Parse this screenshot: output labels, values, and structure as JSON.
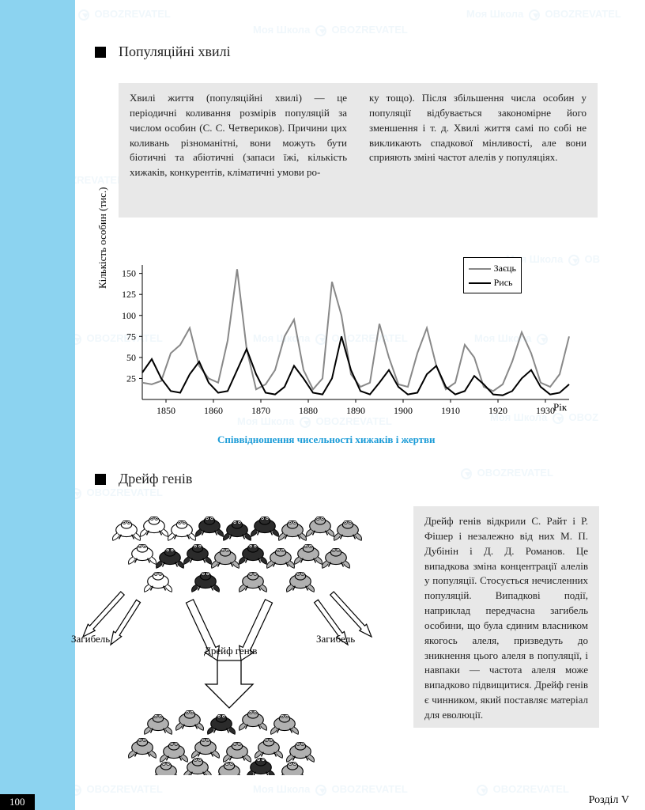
{
  "page": {
    "number": "100",
    "section_label": "Розділ V"
  },
  "watermark": {
    "text1": "Моя Школа",
    "text2": "OBOZREVATEL"
  },
  "heading1": "Популяційні хвилі",
  "heading2": "Дрейф генів",
  "textbox1_left": "Хвилі життя (популяційні хвилі) — це періодичні коливання розмірів популяцій за числом особин (С. С. Четвериков). Причини цих коливань різноманітні, вони можуть бути біотичні та абіотичні (запаси їжі, кількість хижаків, конкурентів, кліматичні умови ро-",
  "textbox1_right": "ку тощо). Після збільшення числа особин у популяції відбувається закономірне його зменшення і т. д. Хвилі життя самі по собі не викликають спадкової мінливості, але вони сприяють зміні частот алелів у популяціях.",
  "textbox2": "Дрейф генів відкрили С. Райт і Р. Фішер і незалежно від них М. П. Дубінін і Д. Д. Романов. Це випадкова зміна концентрації алелів у популяції. Стосується нечисленних популяцій. Випадкові події, наприклад передчасна загибель особини, що була єдиним власником якогось алеля, призведуть до зникнення цього алеля в популяції, і навпаки — частота алеля може випадково підвищитися. Дрейф генів є чинником, який поставляє матеріал для еволюції.",
  "chart": {
    "type": "line",
    "y_label": "Кількість особин (тис.)",
    "x_label": "Рік",
    "caption": "Співвідношення чисельності хижаків і жертви",
    "xlim": [
      1845,
      1935
    ],
    "ylim": [
      0,
      160
    ],
    "xticks": [
      1850,
      1860,
      1870,
      1880,
      1890,
      1900,
      1910,
      1920,
      1930
    ],
    "yticks": [
      25,
      50,
      75,
      100,
      125,
      150
    ],
    "legend": [
      {
        "label": "Заєць",
        "color": "#888888",
        "width": 2
      },
      {
        "label": "Рись",
        "color": "#000000",
        "width": 2
      }
    ],
    "series": {
      "hare": {
        "color": "#888888",
        "points": [
          [
            1845,
            20
          ],
          [
            1847,
            18
          ],
          [
            1849,
            22
          ],
          [
            1851,
            55
          ],
          [
            1853,
            65
          ],
          [
            1855,
            85
          ],
          [
            1857,
            40
          ],
          [
            1859,
            25
          ],
          [
            1861,
            20
          ],
          [
            1863,
            70
          ],
          [
            1865,
            155
          ],
          [
            1867,
            60
          ],
          [
            1869,
            12
          ],
          [
            1871,
            18
          ],
          [
            1873,
            35
          ],
          [
            1875,
            75
          ],
          [
            1877,
            95
          ],
          [
            1879,
            35
          ],
          [
            1881,
            12
          ],
          [
            1883,
            25
          ],
          [
            1885,
            140
          ],
          [
            1887,
            100
          ],
          [
            1889,
            30
          ],
          [
            1891,
            15
          ],
          [
            1893,
            20
          ],
          [
            1895,
            90
          ],
          [
            1897,
            50
          ],
          [
            1899,
            18
          ],
          [
            1901,
            15
          ],
          [
            1903,
            55
          ],
          [
            1905,
            85
          ],
          [
            1907,
            40
          ],
          [
            1909,
            12
          ],
          [
            1911,
            20
          ],
          [
            1913,
            65
          ],
          [
            1915,
            50
          ],
          [
            1917,
            15
          ],
          [
            1919,
            10
          ],
          [
            1921,
            18
          ],
          [
            1923,
            45
          ],
          [
            1925,
            80
          ],
          [
            1927,
            55
          ],
          [
            1929,
            20
          ],
          [
            1931,
            15
          ],
          [
            1933,
            30
          ],
          [
            1935,
            75
          ]
        ]
      },
      "lynx": {
        "color": "#000000",
        "points": [
          [
            1845,
            32
          ],
          [
            1847,
            48
          ],
          [
            1849,
            25
          ],
          [
            1851,
            10
          ],
          [
            1853,
            8
          ],
          [
            1855,
            30
          ],
          [
            1857,
            45
          ],
          [
            1859,
            20
          ],
          [
            1861,
            8
          ],
          [
            1863,
            10
          ],
          [
            1865,
            35
          ],
          [
            1867,
            60
          ],
          [
            1869,
            30
          ],
          [
            1871,
            8
          ],
          [
            1873,
            6
          ],
          [
            1875,
            15
          ],
          [
            1877,
            40
          ],
          [
            1879,
            25
          ],
          [
            1881,
            8
          ],
          [
            1883,
            6
          ],
          [
            1885,
            25
          ],
          [
            1887,
            75
          ],
          [
            1889,
            35
          ],
          [
            1891,
            10
          ],
          [
            1893,
            6
          ],
          [
            1895,
            20
          ],
          [
            1897,
            35
          ],
          [
            1899,
            15
          ],
          [
            1901,
            6
          ],
          [
            1903,
            8
          ],
          [
            1905,
            30
          ],
          [
            1907,
            40
          ],
          [
            1909,
            15
          ],
          [
            1911,
            6
          ],
          [
            1913,
            10
          ],
          [
            1915,
            28
          ],
          [
            1917,
            18
          ],
          [
            1919,
            6
          ],
          [
            1921,
            5
          ],
          [
            1923,
            10
          ],
          [
            1925,
            25
          ],
          [
            1927,
            35
          ],
          [
            1929,
            15
          ],
          [
            1931,
            6
          ],
          [
            1933,
            8
          ],
          [
            1935,
            18
          ]
        ]
      }
    },
    "background_color": "#ffffff",
    "axis_color": "#000000",
    "tick_fontsize": 12
  },
  "diagram": {
    "labels": {
      "death": "Загибель",
      "drift": "Дрейф генів"
    },
    "frog_colors": {
      "white": "#ffffff",
      "dark": "#2b2b2b",
      "gray": "#b0b0b0",
      "stroke": "#000000"
    },
    "arrow_color": "#000000"
  }
}
